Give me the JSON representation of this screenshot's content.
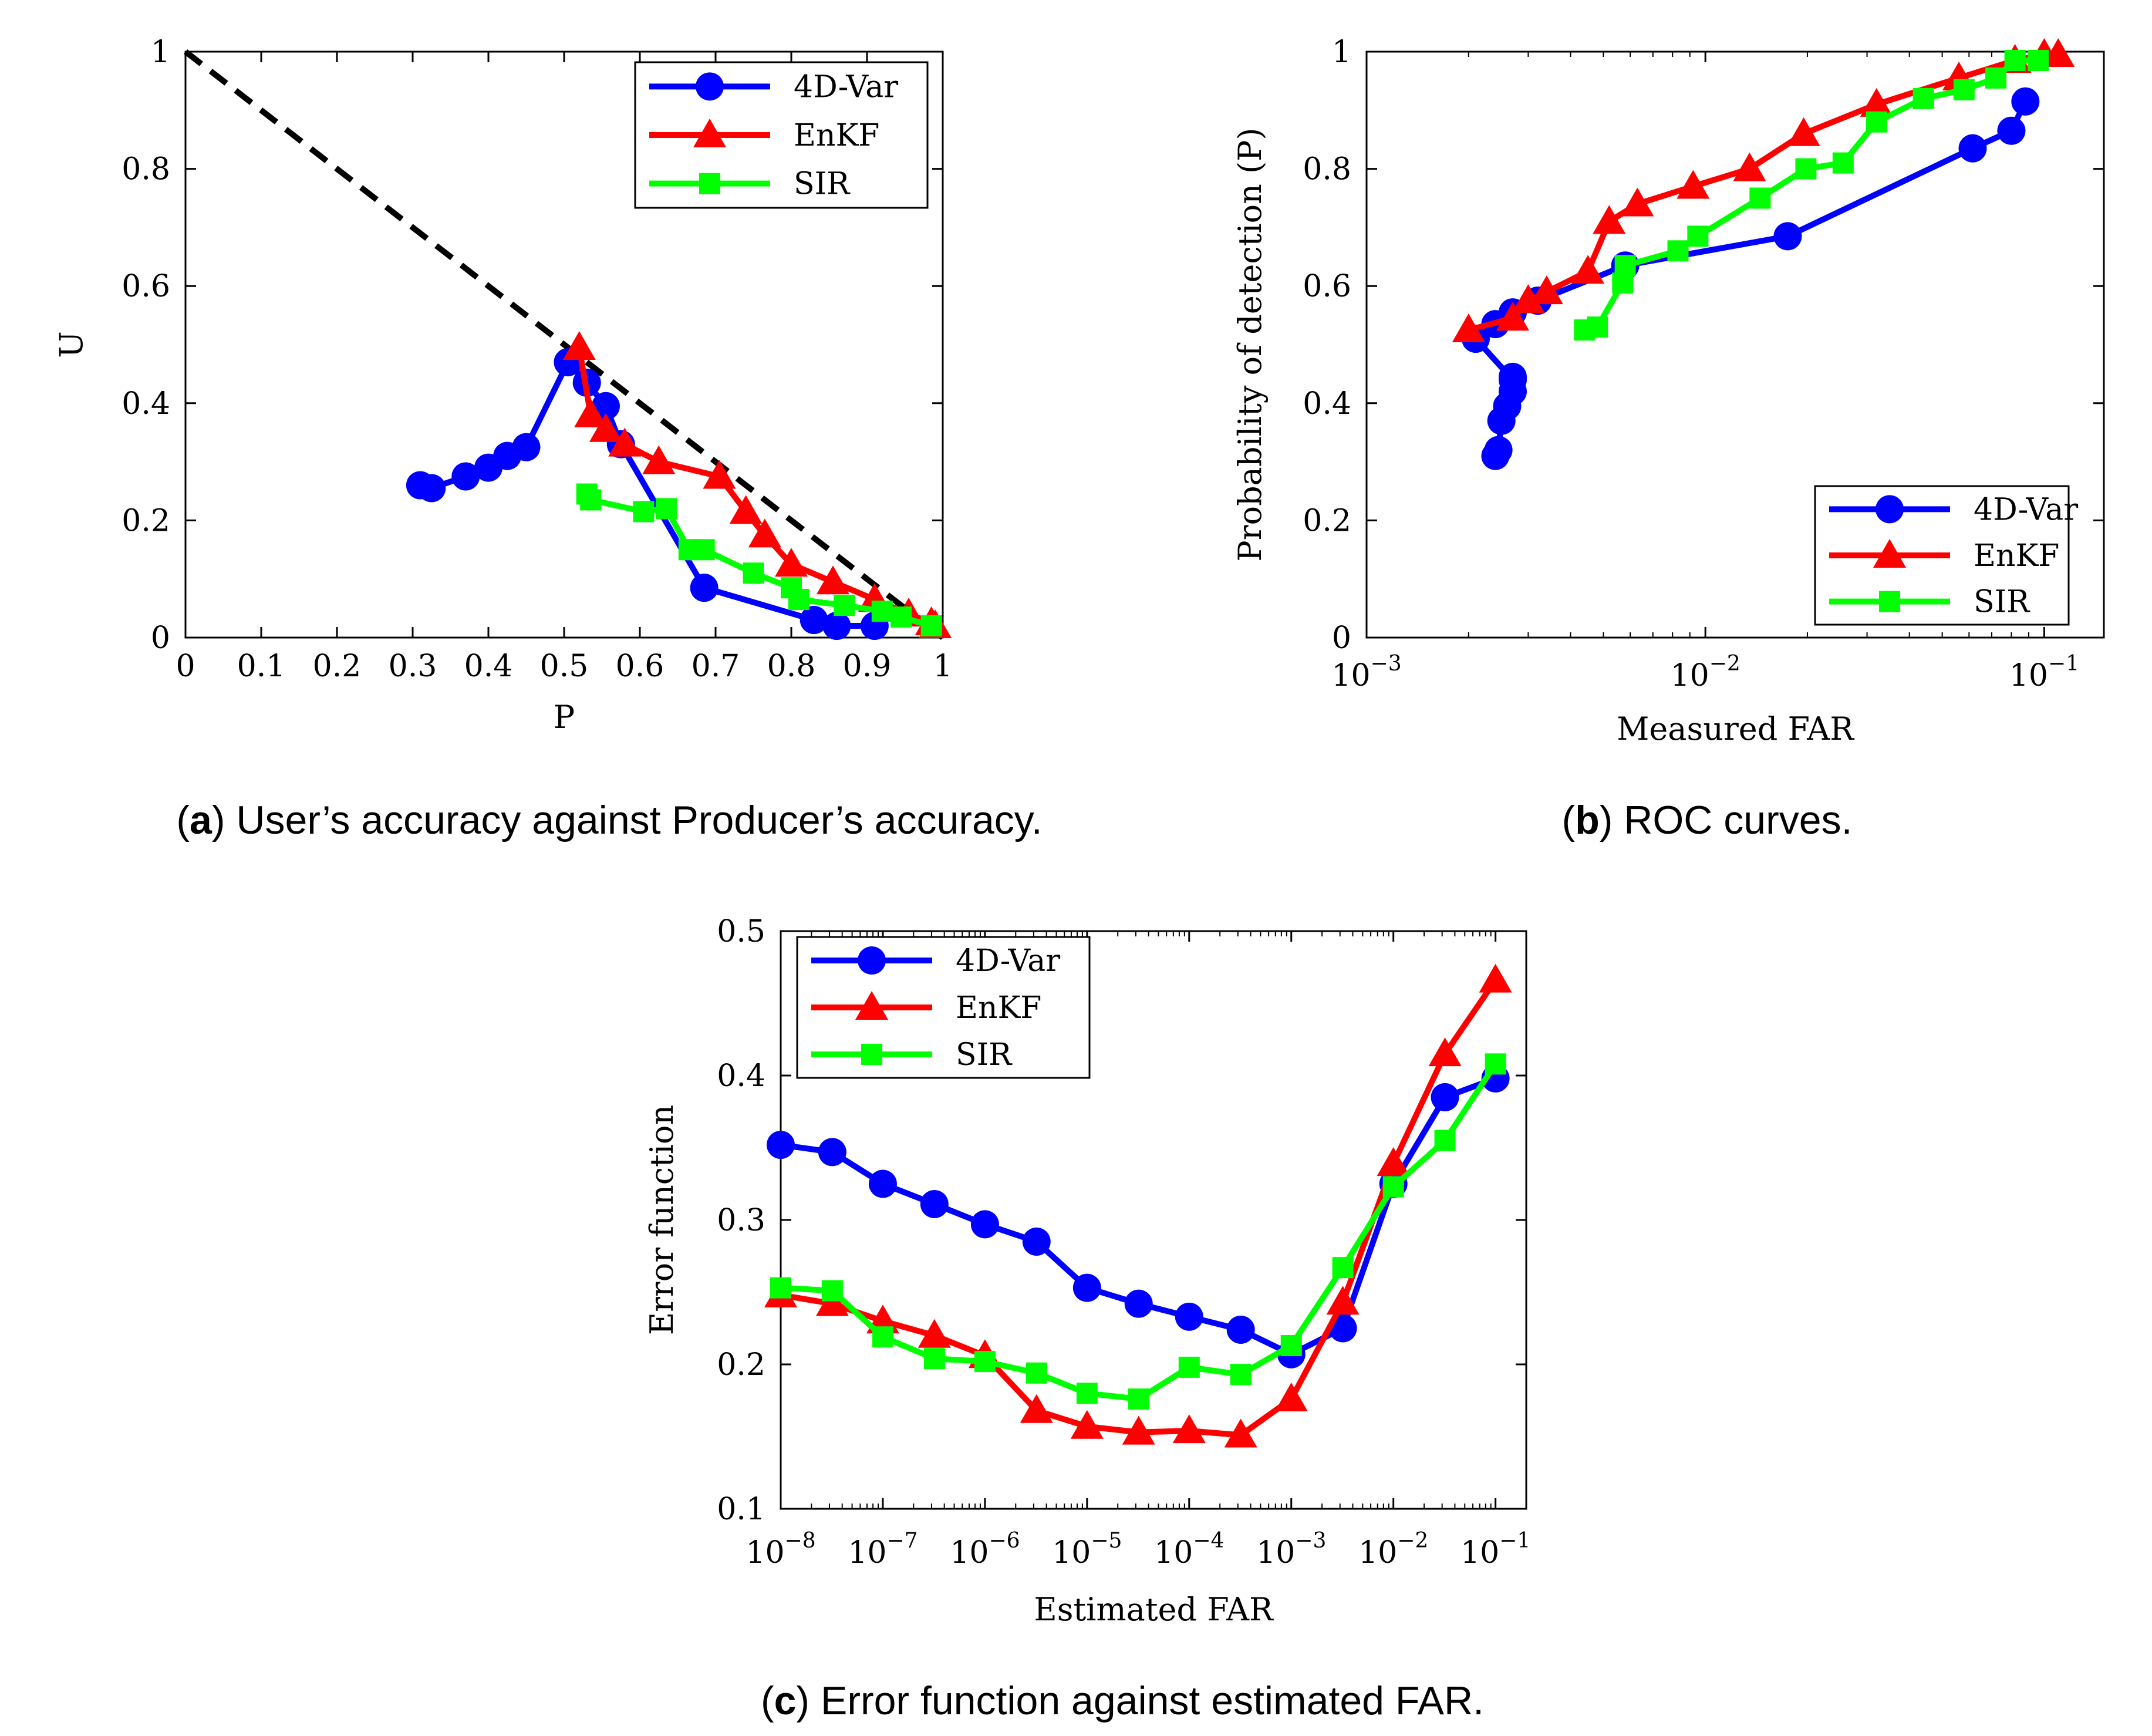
{
  "chart_data": [
    {
      "type": "line",
      "panel": "a",
      "caption_letter": "a",
      "caption_text": "User’s accuracy against Producer’s accuracy.",
      "xlabel": "P",
      "ylabel": "U",
      "xlim": [
        0,
        1
      ],
      "ylim": [
        0,
        1
      ],
      "xscale": "linear",
      "xticks": [
        "0",
        "0.1",
        "0.2",
        "0.3",
        "0.4",
        "0.5",
        "0.6",
        "0.7",
        "0.8",
        "0.9",
        "1"
      ],
      "xtick_values": [
        0,
        0.1,
        0.2,
        0.3,
        0.4,
        0.5,
        0.6,
        0.7,
        0.8,
        0.9,
        1
      ],
      "yticks": [
        "0",
        "0.2",
        "0.4",
        "0.6",
        "0.8",
        "1"
      ],
      "ytick_values": [
        0,
        0.2,
        0.4,
        0.6,
        0.8,
        1
      ],
      "legend_position": "top-right",
      "reference_line": {
        "style": "dashed",
        "color": "#000000",
        "x": [
          0,
          1
        ],
        "y": [
          1,
          0
        ]
      },
      "series": [
        {
          "name": "4D-Var",
          "color": "#0000ff",
          "marker": "circle",
          "x": [
            0.31,
            0.325,
            0.37,
            0.4,
            0.425,
            0.45,
            0.505,
            0.53,
            0.555,
            0.575,
            0.685,
            0.83,
            0.86,
            0.91
          ],
          "y": [
            0.26,
            0.255,
            0.275,
            0.29,
            0.31,
            0.325,
            0.47,
            0.435,
            0.395,
            0.33,
            0.085,
            0.03,
            0.02,
            0.02
          ]
        },
        {
          "name": "EnKF",
          "color": "#ff0000",
          "marker": "triangle",
          "x": [
            0.52,
            0.535,
            0.555,
            0.58,
            0.625,
            0.705,
            0.74,
            0.765,
            0.8,
            0.855,
            0.91,
            0.955,
            0.985,
            0.99
          ],
          "y": [
            0.495,
            0.38,
            0.355,
            0.33,
            0.3,
            0.275,
            0.215,
            0.175,
            0.125,
            0.095,
            0.065,
            0.04,
            0.025,
            0.02
          ]
        },
        {
          "name": "SIR",
          "color": "#00ff00",
          "marker": "square",
          "x": [
            0.53,
            0.535,
            0.605,
            0.635,
            0.665,
            0.685,
            0.75,
            0.8,
            0.81,
            0.87,
            0.92,
            0.945,
            0.985
          ],
          "y": [
            0.245,
            0.235,
            0.215,
            0.22,
            0.15,
            0.15,
            0.11,
            0.085,
            0.065,
            0.055,
            0.045,
            0.035,
            0.02
          ]
        }
      ]
    },
    {
      "type": "line",
      "panel": "b",
      "caption_letter": "b",
      "caption_text": "ROC curves.",
      "xlabel": "Measured FAR",
      "ylabel": "Probability of detection (P)",
      "xscale": "log",
      "xlim": [
        0.001,
        0.15
      ],
      "ylim": [
        0,
        1
      ],
      "xticks": [
        "10",
        "10",
        "10"
      ],
      "xtick_exponents": [
        "−3",
        "−2",
        "−1"
      ],
      "xtick_values": [
        0.001,
        0.01,
        0.1
      ],
      "yticks": [
        "0",
        "0.2",
        "0.4",
        "0.6",
        "0.8",
        "1"
      ],
      "ytick_values": [
        0,
        0.2,
        0.4,
        0.6,
        0.8,
        1
      ],
      "legend_position": "bottom-right",
      "series": [
        {
          "name": "4D-Var",
          "color": "#0000ff",
          "marker": "circle",
          "x": [
            0.0024,
            0.00245,
            0.0025,
            0.0026,
            0.0027,
            0.0027,
            0.0027,
            0.0021,
            0.0024,
            0.0027,
            0.0032,
            0.0058,
            0.0175,
            0.0615,
            0.08,
            0.088
          ],
          "y": [
            0.31,
            0.32,
            0.37,
            0.395,
            0.42,
            0.445,
            0.44,
            0.51,
            0.535,
            0.555,
            0.575,
            0.635,
            0.685,
            0.835,
            0.865,
            0.915
          ]
        },
        {
          "name": "EnKF",
          "color": "#ff0000",
          "marker": "triangle",
          "x": [
            0.002,
            0.0027,
            0.003,
            0.0034,
            0.0045,
            0.0052,
            0.0063,
            0.0092,
            0.0135,
            0.0195,
            0.032,
            0.056,
            0.082,
            0.1,
            0.11
          ],
          "y": [
            0.525,
            0.545,
            0.575,
            0.59,
            0.625,
            0.71,
            0.74,
            0.77,
            0.8,
            0.86,
            0.91,
            0.955,
            0.985,
            0.995,
            0.995
          ]
        },
        {
          "name": "SIR",
          "color": "#00ff00",
          "marker": "square",
          "x": [
            0.0044,
            0.0048,
            0.0057,
            0.0058,
            0.0083,
            0.0095,
            0.0145,
            0.0198,
            0.0255,
            0.032,
            0.044,
            0.058,
            0.072,
            0.082,
            0.096
          ],
          "y": [
            0.525,
            0.53,
            0.605,
            0.635,
            0.66,
            0.685,
            0.75,
            0.8,
            0.81,
            0.88,
            0.92,
            0.935,
            0.955,
            0.985,
            0.985
          ]
        }
      ]
    },
    {
      "type": "line",
      "panel": "c",
      "caption_letter": "c",
      "caption_text": "Error function against estimated FAR.",
      "xlabel": "Estimated FAR",
      "ylabel": "Error function",
      "xscale": "log",
      "xlim": [
        1e-08,
        0.2
      ],
      "ylim": [
        0.1,
        0.5
      ],
      "xticks": [
        "10",
        "10",
        "10",
        "10",
        "10",
        "10",
        "10",
        "10"
      ],
      "xtick_exponents": [
        "−8",
        "−7",
        "−6",
        "−5",
        "−4",
        "−3",
        "−2",
        "−1"
      ],
      "xtick_values": [
        1e-08,
        1e-07,
        1e-06,
        1e-05,
        0.0001,
        0.001,
        0.01,
        0.1
      ],
      "yticks": [
        "0.1",
        "0.2",
        "0.3",
        "0.4",
        "0.5"
      ],
      "ytick_values": [
        0.1,
        0.2,
        0.3,
        0.4,
        0.5
      ],
      "legend_position": "top-left",
      "series": [
        {
          "name": "4D-Var",
          "color": "#0000ff",
          "marker": "circle",
          "x": [
            1e-08,
            3.2e-08,
            1e-07,
            3.2e-07,
            1e-06,
            3.2e-06,
            1e-05,
            3.2e-05,
            0.0001,
            0.00032,
            0.001,
            0.0032,
            0.01,
            0.032,
            0.1
          ],
          "y": [
            0.352,
            0.347,
            0.325,
            0.311,
            0.297,
            0.285,
            0.253,
            0.242,
            0.233,
            0.224,
            0.207,
            0.225,
            0.325,
            0.385,
            0.398
          ]
        },
        {
          "name": "EnKF",
          "color": "#ff0000",
          "marker": "triangle",
          "x": [
            1e-08,
            3.2e-08,
            1e-07,
            3.2e-07,
            1e-06,
            3.2e-06,
            1e-05,
            3.2e-05,
            0.0001,
            0.00032,
            0.001,
            0.0032,
            0.01,
            0.032,
            0.1
          ],
          "y": [
            0.248,
            0.242,
            0.23,
            0.22,
            0.206,
            0.168,
            0.157,
            0.153,
            0.154,
            0.151,
            0.176,
            0.243,
            0.339,
            0.415,
            0.466
          ]
        },
        {
          "name": "SIR",
          "color": "#00ff00",
          "marker": "square",
          "x": [
            1e-08,
            3.2e-08,
            1e-07,
            3.2e-07,
            1e-06,
            3.2e-06,
            1e-05,
            3.2e-05,
            0.0001,
            0.00032,
            0.001,
            0.0032,
            0.01,
            0.032,
            0.1
          ],
          "y": [
            0.253,
            0.251,
            0.219,
            0.204,
            0.202,
            0.194,
            0.18,
            0.176,
            0.198,
            0.193,
            0.213,
            0.267,
            0.323,
            0.355,
            0.408
          ]
        }
      ]
    }
  ]
}
